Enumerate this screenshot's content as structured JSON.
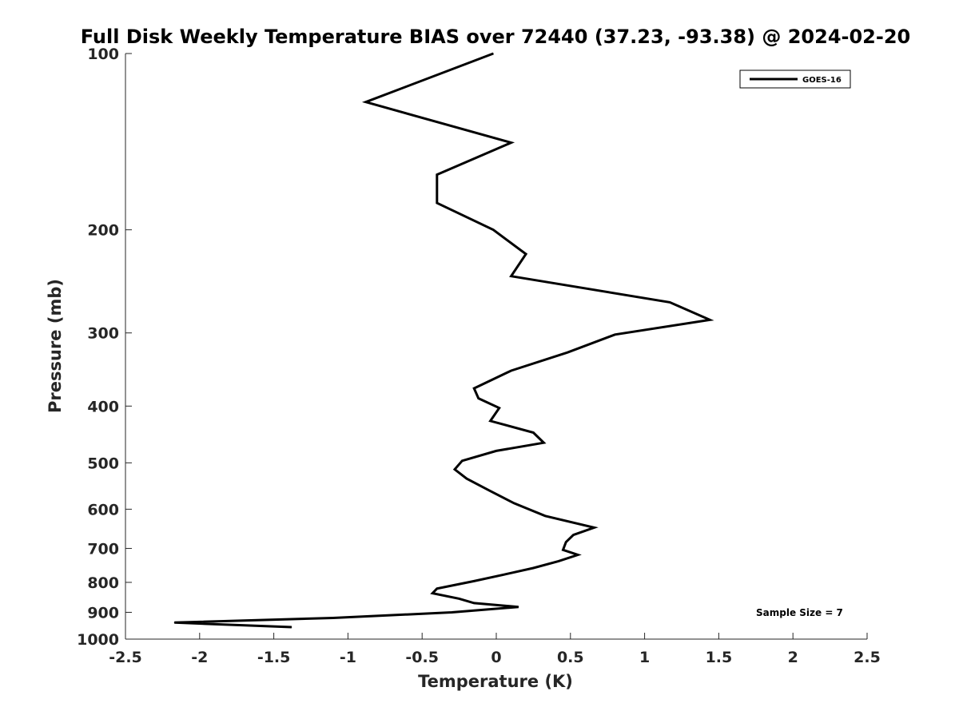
{
  "chart_data": {
    "type": "line",
    "title": "Full Disk Weekly Temperature BIAS over 72440 (37.23, -93.38) @ 2024-02-20",
    "xlabel": "Temperature (K)",
    "ylabel": "Pressure (mb)",
    "xlim": [
      -2.5,
      2.5
    ],
    "ylim": [
      100,
      1000
    ],
    "y_scale": "log",
    "y_reversed": true,
    "x_ticks": [
      "-2.5",
      "-2",
      "-1.5",
      "-1",
      "-0.5",
      "0",
      "0.5",
      "1",
      "1.5",
      "2",
      "2.5"
    ],
    "y_ticks": [
      "100",
      "200",
      "300",
      "400",
      "500",
      "600",
      "700",
      "800",
      "900",
      "1000"
    ],
    "grid": false,
    "legend_position": "top-right",
    "annotation": "Sample Size = 7",
    "series": [
      {
        "name": "GOES-16",
        "color": "#000000",
        "points": [
          {
            "t": -0.02,
            "p": 100
          },
          {
            "t": -0.88,
            "p": 121
          },
          {
            "t": 0.1,
            "p": 142
          },
          {
            "t": -0.4,
            "p": 161
          },
          {
            "t": -0.4,
            "p": 180
          },
          {
            "t": -0.02,
            "p": 200
          },
          {
            "t": 0.2,
            "p": 220
          },
          {
            "t": 0.1,
            "p": 240
          },
          {
            "t": 1.17,
            "p": 266
          },
          {
            "t": 1.44,
            "p": 285
          },
          {
            "t": 0.8,
            "p": 302
          },
          {
            "t": 0.48,
            "p": 324
          },
          {
            "t": 0.1,
            "p": 348
          },
          {
            "t": -0.15,
            "p": 373
          },
          {
            "t": -0.12,
            "p": 388
          },
          {
            "t": 0.02,
            "p": 403
          },
          {
            "t": -0.04,
            "p": 424
          },
          {
            "t": 0.25,
            "p": 444
          },
          {
            "t": 0.32,
            "p": 462
          },
          {
            "t": 0.0,
            "p": 477
          },
          {
            "t": -0.23,
            "p": 496
          },
          {
            "t": -0.28,
            "p": 513
          },
          {
            "t": -0.2,
            "p": 532
          },
          {
            "t": -0.05,
            "p": 557
          },
          {
            "t": 0.12,
            "p": 586
          },
          {
            "t": 0.33,
            "p": 616
          },
          {
            "t": 0.66,
            "p": 645
          },
          {
            "t": 0.52,
            "p": 664
          },
          {
            "t": 0.47,
            "p": 683
          },
          {
            "t": 0.45,
            "p": 704
          },
          {
            "t": 0.55,
            "p": 718
          },
          {
            "t": 0.42,
            "p": 736
          },
          {
            "t": 0.25,
            "p": 756
          },
          {
            "t": 0.05,
            "p": 776
          },
          {
            "t": -0.15,
            "p": 796
          },
          {
            "t": -0.4,
            "p": 820
          },
          {
            "t": -0.43,
            "p": 835
          },
          {
            "t": -0.25,
            "p": 853
          },
          {
            "t": -0.15,
            "p": 868
          },
          {
            "t": 0.15,
            "p": 881
          },
          {
            "t": -0.3,
            "p": 900
          },
          {
            "t": -1.1,
            "p": 920
          },
          {
            "t": -2.17,
            "p": 937
          },
          {
            "t": -1.38,
            "p": 954
          }
        ]
      }
    ]
  }
}
